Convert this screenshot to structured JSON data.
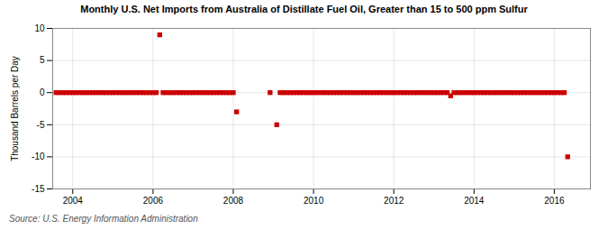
{
  "chart_data": {
    "type": "scatter",
    "title": "Monthly U.S. Net Imports from Australia of Distillate Fuel Oil, Greater than 15 to 500 ppm Sulfur",
    "ylabel": "Thousand Barrels per Day",
    "source": "Source: U.S. Energy Information Administration",
    "color": "#cc0000",
    "marker": "square",
    "grid": true,
    "xlim": [
      2003.5,
      2016.9
    ],
    "xticks": [
      2004,
      2006,
      2008,
      2010,
      2012,
      2014,
      2016
    ],
    "ylim": [
      -15,
      10
    ],
    "yticks": [
      -15,
      -10,
      -5,
      0,
      5,
      10
    ],
    "x": [
      2003.583,
      2003.667,
      2003.75,
      2003.833,
      2003.917,
      2004.0,
      2004.083,
      2004.167,
      2004.25,
      2004.333,
      2004.417,
      2004.5,
      2004.583,
      2004.667,
      2004.75,
      2004.833,
      2004.917,
      2005.0,
      2005.083,
      2005.167,
      2005.25,
      2005.333,
      2005.417,
      2005.5,
      2005.583,
      2005.667,
      2005.75,
      2005.833,
      2005.917,
      2006.0,
      2006.083,
      2006.167,
      2006.25,
      2006.333,
      2006.417,
      2006.5,
      2006.583,
      2006.667,
      2006.75,
      2006.833,
      2006.917,
      2007.0,
      2007.083,
      2007.167,
      2007.25,
      2007.333,
      2007.417,
      2007.5,
      2007.583,
      2007.667,
      2007.75,
      2007.833,
      2007.917,
      2008.0,
      2008.083,
      2008.917,
      2009.083,
      2009.167,
      2009.25,
      2009.333,
      2009.417,
      2009.5,
      2009.583,
      2009.667,
      2009.75,
      2009.833,
      2009.917,
      2010.0,
      2010.083,
      2010.167,
      2010.25,
      2010.333,
      2010.417,
      2010.5,
      2010.583,
      2010.667,
      2010.75,
      2010.833,
      2010.917,
      2011.0,
      2011.083,
      2011.167,
      2011.25,
      2011.333,
      2011.417,
      2011.5,
      2011.583,
      2011.667,
      2011.75,
      2011.833,
      2011.917,
      2012.0,
      2012.083,
      2012.167,
      2012.25,
      2012.333,
      2012.417,
      2012.5,
      2012.583,
      2012.667,
      2012.75,
      2012.833,
      2012.917,
      2013.0,
      2013.083,
      2013.167,
      2013.25,
      2013.333,
      2013.417,
      2013.5,
      2013.583,
      2013.667,
      2013.75,
      2013.833,
      2013.917,
      2014.0,
      2014.083,
      2014.167,
      2014.25,
      2014.333,
      2014.417,
      2014.5,
      2014.583,
      2014.667,
      2014.75,
      2014.833,
      2014.917,
      2015.0,
      2015.083,
      2015.167,
      2015.25,
      2015.333,
      2015.417,
      2015.5,
      2015.583,
      2015.667,
      2015.75,
      2015.833,
      2015.917,
      2016.0,
      2016.083,
      2016.167,
      2016.25,
      2016.333
    ],
    "values": [
      0,
      0,
      0,
      0,
      0,
      0,
      0,
      0,
      0,
      0,
      0,
      0,
      0,
      0,
      0,
      0,
      0,
      0,
      0,
      0,
      0,
      0,
      0,
      0,
      0,
      0,
      0,
      0,
      0,
      0,
      0,
      9.0,
      0,
      0,
      0,
      0,
      0,
      0,
      0,
      0,
      0,
      0,
      0,
      0,
      0,
      0,
      0,
      0,
      0,
      0,
      0,
      0,
      0,
      0,
      -3.0,
      0,
      -5.0,
      0,
      0,
      0,
      0,
      0,
      0,
      0,
      0,
      0,
      0,
      0,
      0,
      0,
      0,
      0,
      0,
      0,
      0,
      0,
      0,
      0,
      0,
      0,
      0,
      0,
      0,
      0,
      0,
      0,
      0,
      0,
      0,
      0,
      0,
      0,
      0,
      0,
      0,
      0,
      0,
      0,
      0,
      0,
      0,
      0,
      0,
      0,
      0,
      0,
      0,
      0,
      -0.5,
      0,
      0,
      0,
      0,
      0,
      0,
      0,
      0,
      0,
      0,
      0,
      0,
      0,
      0,
      0,
      0,
      0,
      0,
      0,
      0,
      0,
      0,
      0,
      0,
      0,
      0,
      0,
      0,
      0,
      0,
      0,
      0,
      0,
      0,
      -10.0
    ]
  }
}
